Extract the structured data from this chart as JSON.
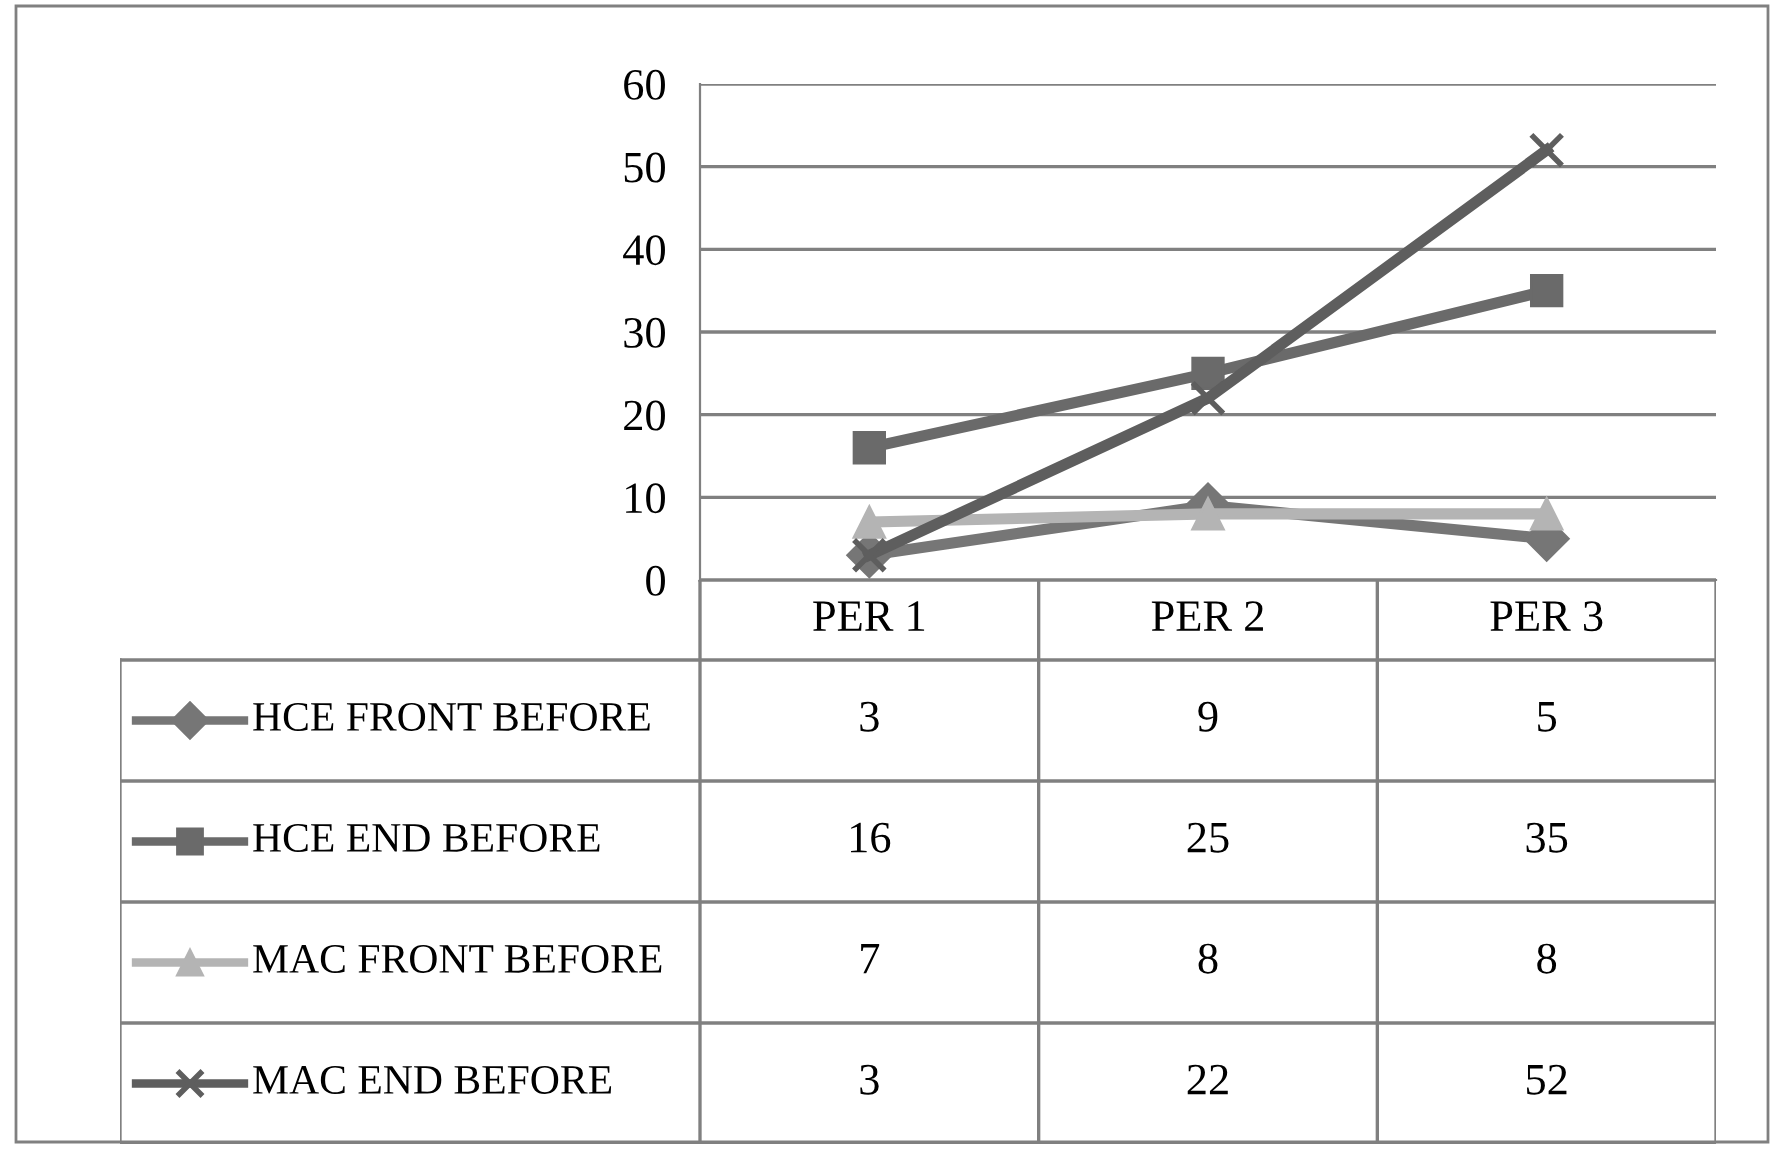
{
  "chart_data": {
    "type": "line",
    "categories": [
      "PER 1",
      "PER 2",
      "PER 3"
    ],
    "series": [
      {
        "name": "HCE FRONT BEFORE",
        "color": "#767676",
        "marker": "diamond",
        "values": [
          3,
          9,
          5
        ]
      },
      {
        "name": "HCE END BEFORE",
        "color": "#6a6a6a",
        "marker": "square",
        "values": [
          16,
          25,
          35
        ]
      },
      {
        "name": "MAC FRONT BEFORE",
        "color": "#b4b4b4",
        "marker": "triangle",
        "values": [
          7,
          8,
          8
        ]
      },
      {
        "name": "MAC END BEFORE",
        "color": "#5e5e5e",
        "marker": "cross",
        "values": [
          3,
          22,
          52
        ]
      }
    ],
    "ylim": [
      0,
      60
    ],
    "yticks": [
      0,
      10,
      20,
      30,
      40,
      50,
      60
    ],
    "grid": "y",
    "data_labels": true,
    "legend": "bottom"
  }
}
